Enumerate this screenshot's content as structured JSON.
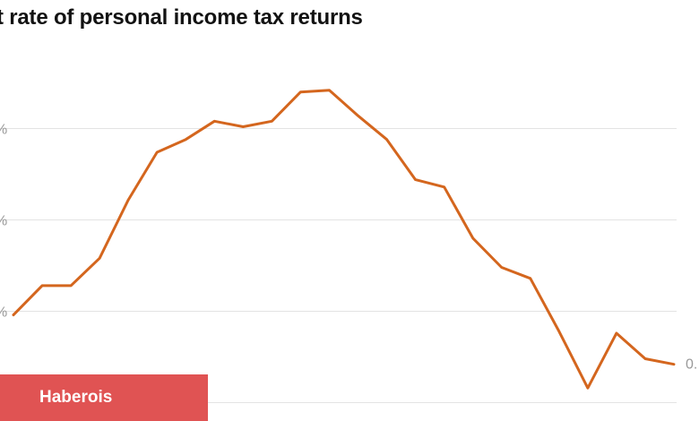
{
  "chart_data": {
    "type": "line",
    "title": "t rate of personal income tax returns",
    "ylim": [
      0,
      0.2
    ],
    "yticks": [
      {
        "value": 0.05,
        "label": "%"
      },
      {
        "value": 0.1,
        "label": "%"
      },
      {
        "value": 0.15,
        "label": "%"
      }
    ],
    "grid": true,
    "series": [
      {
        "color": "#d4661e",
        "values": [
          0.048,
          0.064,
          0.064,
          0.079,
          0.111,
          0.137,
          0.144,
          0.154,
          0.151,
          0.154,
          0.17,
          0.171,
          0.157,
          0.144,
          0.122,
          0.118,
          0.09,
          0.074,
          0.068,
          0.039,
          0.008,
          0.038,
          0.024,
          0.021
        ]
      }
    ],
    "end_label": "0."
  },
  "brand_banner": {
    "label": "Haberois",
    "color": "#e05353"
  }
}
